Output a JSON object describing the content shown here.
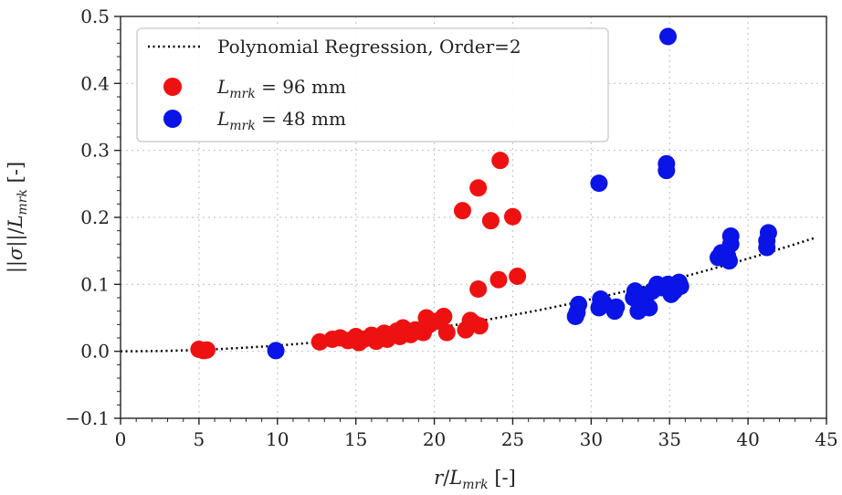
{
  "chart_data": {
    "type": "scatter",
    "title": "",
    "xlabel": "r/L_mrk [-]",
    "ylabel": "||σ||/L_mrk [-]",
    "xlim": [
      0,
      45
    ],
    "ylim": [
      -0.1,
      0.5
    ],
    "x_ticks": [
      0,
      5,
      10,
      15,
      20,
      25,
      30,
      35,
      40,
      45
    ],
    "y_ticks": [
      -0.1,
      0.0,
      0.1,
      0.2,
      0.3,
      0.4,
      0.5
    ],
    "x_tick_labels": [
      "0",
      "5",
      "10",
      "15",
      "20",
      "25",
      "30",
      "35",
      "40",
      "45"
    ],
    "y_tick_labels": [
      "−0.1",
      "0.0",
      "0.1",
      "0.2",
      "0.3",
      "0.4",
      "0.5"
    ],
    "grid": true,
    "legend_position": "top-left",
    "fit": {
      "name": "Polynomial Regression, Order=2",
      "style": "dotted",
      "color": "#000000",
      "coefficients_a2": 8.65e-05,
      "x_range": [
        0,
        44.3
      ]
    },
    "series": [
      {
        "name_main": "L",
        "name_sub": "mrk",
        "name_rest": " = 96 mm",
        "color": "#ee1111",
        "points": [
          [
            5.0,
            0.003
          ],
          [
            5.5,
            0.002
          ],
          [
            5.3,
            0.001
          ],
          [
            12.7,
            0.014
          ],
          [
            13.5,
            0.018
          ],
          [
            14.0,
            0.02
          ],
          [
            14.5,
            0.016
          ],
          [
            15.0,
            0.022
          ],
          [
            15.2,
            0.013
          ],
          [
            15.5,
            0.018
          ],
          [
            15.8,
            0.02
          ],
          [
            16.0,
            0.024
          ],
          [
            16.3,
            0.015
          ],
          [
            16.6,
            0.02
          ],
          [
            16.8,
            0.027
          ],
          [
            17.0,
            0.018
          ],
          [
            17.3,
            0.025
          ],
          [
            17.6,
            0.03
          ],
          [
            17.8,
            0.022
          ],
          [
            18.0,
            0.035
          ],
          [
            18.2,
            0.028
          ],
          [
            18.5,
            0.025
          ],
          [
            18.8,
            0.032
          ],
          [
            19.0,
            0.03
          ],
          [
            19.3,
            0.028
          ],
          [
            19.5,
            0.05
          ],
          [
            19.7,
            0.04
          ],
          [
            20.2,
            0.045
          ],
          [
            20.6,
            0.052
          ],
          [
            20.8,
            0.028
          ],
          [
            22.0,
            0.032
          ],
          [
            22.3,
            0.046
          ],
          [
            22.5,
            0.042
          ],
          [
            22.9,
            0.038
          ],
          [
            22.8,
            0.093
          ],
          [
            24.1,
            0.107
          ],
          [
            25.3,
            0.112
          ],
          [
            21.8,
            0.21
          ],
          [
            22.8,
            0.244
          ],
          [
            23.6,
            0.195
          ],
          [
            24.2,
            0.285
          ],
          [
            25.0,
            0.201
          ]
        ]
      },
      {
        "name_main": "L",
        "name_sub": "mrk",
        "name_rest": " = 48 mm",
        "color": "#0a14e6",
        "points": [
          [
            9.9,
            0.001
          ],
          [
            29.0,
            0.052
          ],
          [
            29.1,
            0.058
          ],
          [
            29.2,
            0.07
          ],
          [
            30.5,
            0.065
          ],
          [
            30.6,
            0.078
          ],
          [
            30.8,
            0.072
          ],
          [
            31.5,
            0.06
          ],
          [
            31.6,
            0.066
          ],
          [
            32.7,
            0.08
          ],
          [
            32.8,
            0.09
          ],
          [
            33.0,
            0.06
          ],
          [
            33.2,
            0.07
          ],
          [
            33.5,
            0.082
          ],
          [
            33.7,
            0.065
          ],
          [
            33.9,
            0.09
          ],
          [
            34.2,
            0.1
          ],
          [
            34.5,
            0.095
          ],
          [
            34.9,
            0.1
          ],
          [
            35.1,
            0.085
          ],
          [
            35.3,
            0.09
          ],
          [
            35.6,
            0.103
          ],
          [
            35.7,
            0.097
          ],
          [
            38.1,
            0.14
          ],
          [
            38.3,
            0.147
          ],
          [
            38.7,
            0.142
          ],
          [
            38.8,
            0.135
          ],
          [
            38.9,
            0.16
          ],
          [
            38.9,
            0.172
          ],
          [
            41.2,
            0.155
          ],
          [
            41.2,
            0.165
          ],
          [
            41.3,
            0.177
          ],
          [
            30.5,
            0.251
          ],
          [
            34.8,
            0.27
          ],
          [
            34.8,
            0.28
          ],
          [
            34.9,
            0.47
          ]
        ]
      }
    ]
  }
}
